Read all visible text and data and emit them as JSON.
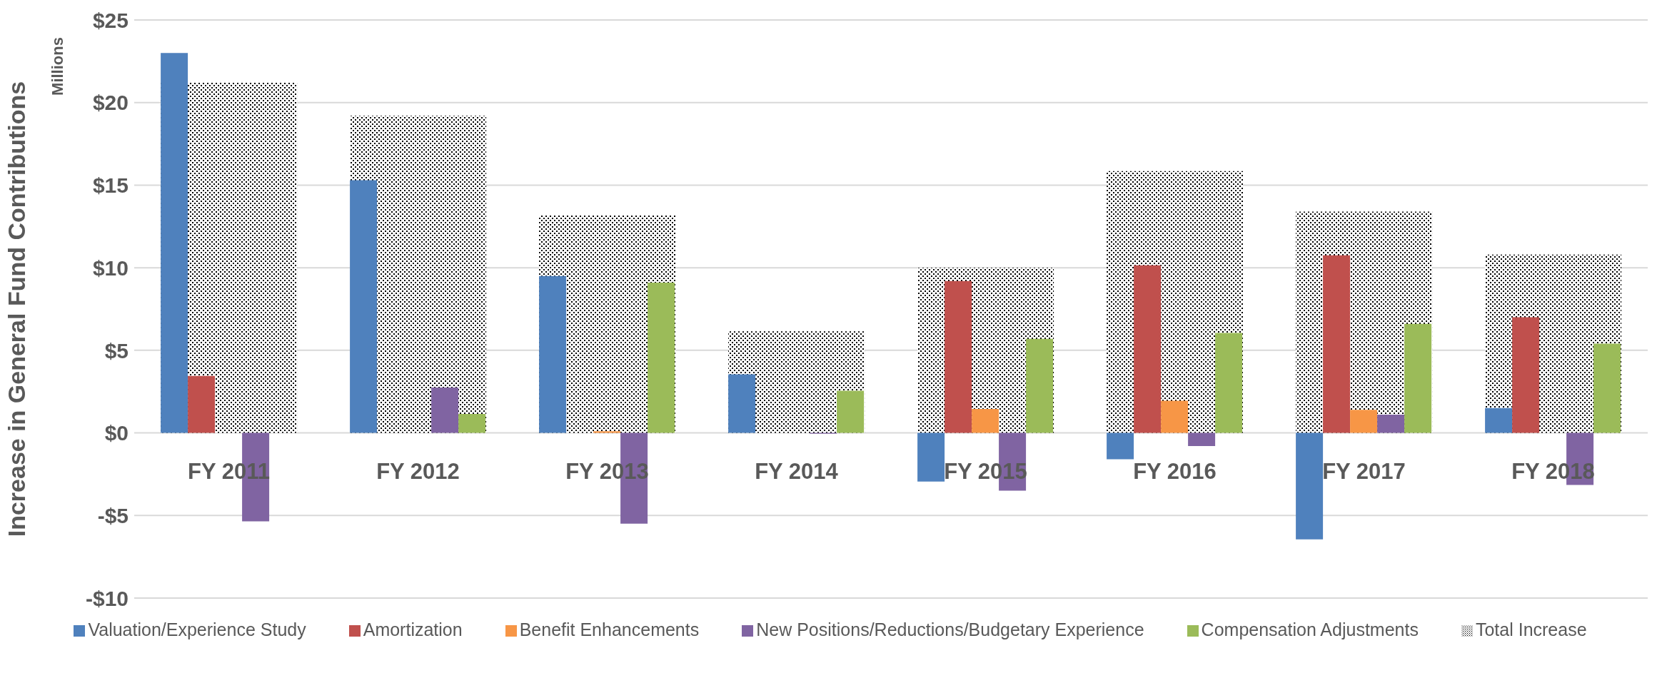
{
  "chart_data": {
    "type": "bar",
    "ylabel": "Increase in General Fund Contributions",
    "annotations": [
      "Millions"
    ],
    "categories": [
      "FY 2011",
      "FY 2012",
      "FY 2013",
      "FY 2014",
      "FY 2015",
      "FY 2016",
      "FY 2017",
      "FY 2018"
    ],
    "series": [
      {
        "name": "Valuation/Experience Study",
        "color": "#4f81bd",
        "values": [
          23.0,
          15.3,
          9.5,
          3.55,
          -2.95,
          -1.6,
          -6.45,
          1.5
        ]
      },
      {
        "name": "Amortization",
        "color": "#c0504d",
        "values": [
          3.45,
          0,
          0,
          0,
          9.2,
          10.15,
          10.75,
          7.0
        ]
      },
      {
        "name": "Benefit Enhancements",
        "color": "#f79646",
        "values": [
          0,
          0,
          0.1,
          0,
          1.45,
          1.95,
          1.4,
          0
        ]
      },
      {
        "name": "New Positions/Reductions/Budgetary Experience",
        "color": "#8064a2",
        "values": [
          -5.35,
          2.75,
          -5.5,
          -0.05,
          -3.5,
          -0.8,
          1.1,
          -3.15
        ]
      },
      {
        "name": "Compensation Adjustments",
        "color": "#9bbb59",
        "values": [
          0,
          1.15,
          9.1,
          2.55,
          5.7,
          6.05,
          6.6,
          5.4
        ]
      },
      {
        "name": "Total Increase",
        "color": "#000000",
        "values": [
          21.2,
          19.2,
          13.2,
          6.15,
          10.0,
          15.85,
          13.4,
          10.8
        ]
      }
    ],
    "ylim": [
      -10,
      25
    ],
    "yticks": [
      {
        "value": -10,
        "label": "-$10"
      },
      {
        "value": -5,
        "label": "-$5"
      },
      {
        "value": 0,
        "label": "$0"
      },
      {
        "value": 5,
        "label": "$5"
      },
      {
        "value": 10,
        "label": "$10"
      },
      {
        "value": 15,
        "label": "$15"
      },
      {
        "value": 20,
        "label": "$20"
      },
      {
        "value": 25,
        "label": "$25"
      }
    ],
    "grid": "y",
    "legend": "bottom"
  }
}
